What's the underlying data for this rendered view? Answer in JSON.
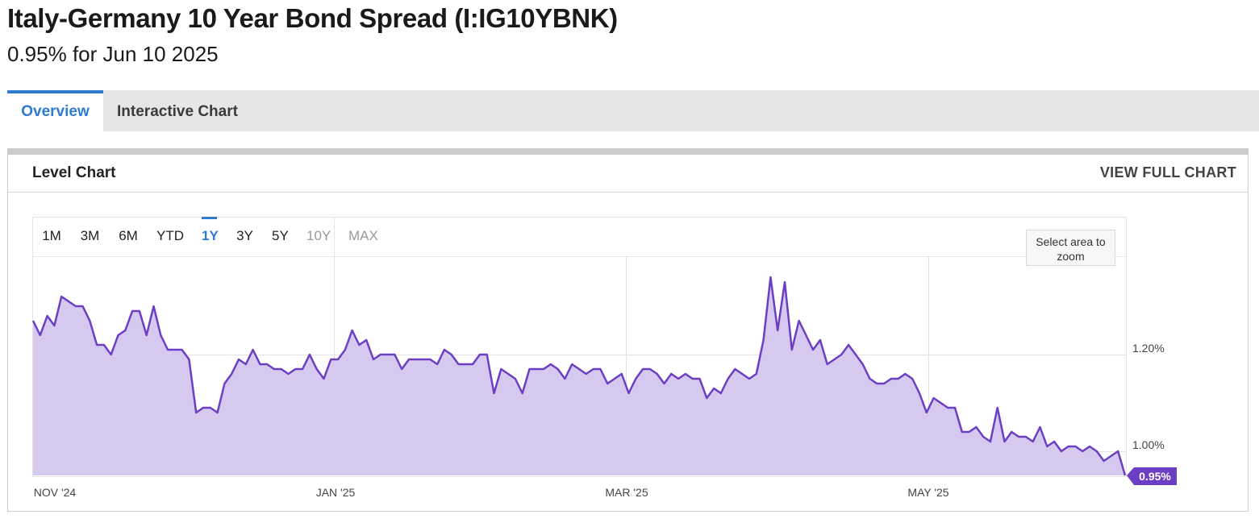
{
  "header": {
    "title": "Italy-Germany 10 Year Bond Spread (I:IG10YBNK)",
    "subtitle": "0.95% for Jun 10 2025"
  },
  "tabs": [
    {
      "label": "Overview",
      "active": true
    },
    {
      "label": "Interactive Chart",
      "active": false
    }
  ],
  "panel": {
    "title": "Level Chart",
    "view_full_label": "VIEW FULL CHART"
  },
  "ranges": [
    {
      "label": "1M",
      "state": "normal"
    },
    {
      "label": "3M",
      "state": "normal"
    },
    {
      "label": "6M",
      "state": "normal"
    },
    {
      "label": "YTD",
      "state": "normal"
    },
    {
      "label": "1Y",
      "state": "active"
    },
    {
      "label": "3Y",
      "state": "normal"
    },
    {
      "label": "5Y",
      "state": "normal"
    },
    {
      "label": "10Y",
      "state": "disabled"
    },
    {
      "label": "MAX",
      "state": "disabled"
    }
  ],
  "zoom_hint": "Select area to zoom",
  "colors": {
    "accent": "#2f7bd1",
    "series_line": "#6c3ec4",
    "series_fill": "#d6c9ef",
    "last_value_tag": "#6c3ec4"
  },
  "chart_data": {
    "type": "area",
    "series": [
      {
        "values": [
          1.27,
          1.24,
          1.28,
          1.26,
          1.32,
          1.31,
          1.3,
          1.3,
          1.27,
          1.22,
          1.22,
          1.2,
          1.24,
          1.25,
          1.29,
          1.29,
          1.24,
          1.3,
          1.24,
          1.21,
          1.21,
          1.21,
          1.19,
          1.08,
          1.09,
          1.09,
          1.08,
          1.14,
          1.16,
          1.19,
          1.18,
          1.21,
          1.18,
          1.18,
          1.17,
          1.17,
          1.16,
          1.17,
          1.17,
          1.2,
          1.17,
          1.15,
          1.19,
          1.19,
          1.21,
          1.25,
          1.22,
          1.23,
          1.19,
          1.2,
          1.2,
          1.2,
          1.17,
          1.19,
          1.19,
          1.19,
          1.19,
          1.18,
          1.21,
          1.2,
          1.18,
          1.18,
          1.18,
          1.2,
          1.2,
          1.12,
          1.17,
          1.16,
          1.15,
          1.12,
          1.17,
          1.17,
          1.17,
          1.18,
          1.17,
          1.15,
          1.18,
          1.17,
          1.16,
          1.17,
          1.17,
          1.14,
          1.15,
          1.16,
          1.12,
          1.15,
          1.17,
          1.17,
          1.16,
          1.14,
          1.16,
          1.15,
          1.16,
          1.15,
          1.15,
          1.11,
          1.13,
          1.12,
          1.15,
          1.17,
          1.16,
          1.15,
          1.16,
          1.23,
          1.36,
          1.25,
          1.35,
          1.21,
          1.27,
          1.24,
          1.21,
          1.23,
          1.18,
          1.19,
          1.2,
          1.22,
          1.2,
          1.18,
          1.15,
          1.14,
          1.14,
          1.15,
          1.15,
          1.16,
          1.15,
          1.12,
          1.08,
          1.11,
          1.1,
          1.09,
          1.09,
          1.04,
          1.04,
          1.05,
          1.03,
          1.02,
          1.09,
          1.02,
          1.04,
          1.03,
          1.03,
          1.02,
          1.05,
          1.01,
          1.02,
          1.0,
          1.01,
          1.01,
          1.0,
          1.01,
          1.0,
          0.98,
          0.99,
          1.0,
          0.95
        ]
      }
    ],
    "x_tick_labels": [
      "NOV '24",
      "JAN '25",
      "MAR '25",
      "MAY '25"
    ],
    "y_tick_labels": [
      "1.20%",
      "1.00%"
    ],
    "ylim": [
      0.95,
      1.4
    ],
    "last_value_label": "0.95%",
    "grid": true
  }
}
